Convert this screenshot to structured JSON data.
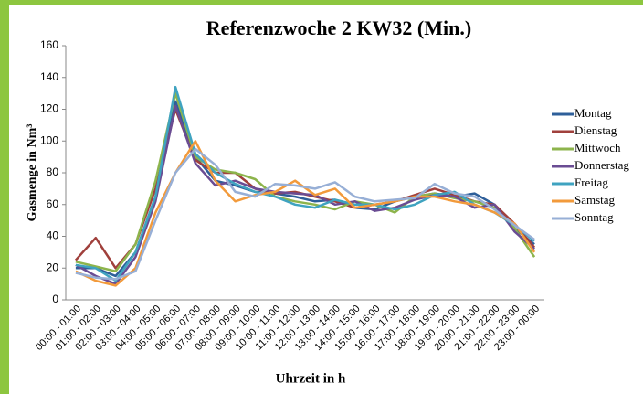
{
  "chart_data": {
    "type": "line",
    "title": "Referenzwoche 2 KW32 (Min.)",
    "y_label": "Gasmenge in Nm³",
    "x_label": "Uhrzeit in h",
    "categories": [
      "00:00 - 01:00",
      "01:00 - 02:00",
      "02:00 - 03:00",
      "03:00 - 04:00",
      "04:00 - 05:00",
      "05:00 - 06:00",
      "06:00 - 07:00",
      "07:00 - 08:00",
      "08:00 - 09:00",
      "09:00 - 10:00",
      "10:00 - 11:00",
      "11:00 - 12:00",
      "12:00 - 13:00",
      "13:00 - 14:00",
      "14:00 - 15:00",
      "15:00 - 16:00",
      "16:00 - 17:00",
      "17:00 - 18:00",
      "18:00 - 19:00",
      "19:00 - 20:00",
      "20:00 - 21:00",
      "21:00 - 22:00",
      "22:00 - 23:00",
      "23:00 - 00:00"
    ],
    "series": [
      {
        "name": "Montag",
        "color": "#2e5f9a",
        "values": [
          20,
          20,
          15,
          30,
          65,
          125,
          90,
          75,
          72,
          68,
          67,
          65,
          62,
          63,
          58,
          57,
          62,
          65,
          67,
          65,
          67,
          60,
          45,
          35
        ]
      },
      {
        "name": "Dienstag",
        "color": "#a0403c",
        "values": [
          25,
          39,
          20,
          35,
          70,
          120,
          88,
          80,
          80,
          70,
          67,
          68,
          65,
          62,
          58,
          60,
          62,
          66,
          70,
          66,
          62,
          60,
          48,
          33
        ]
      },
      {
        "name": "Mittwoch",
        "color": "#8db44c",
        "values": [
          24,
          21,
          18,
          35,
          75,
          130,
          90,
          82,
          80,
          76,
          65,
          62,
          60,
          57,
          62,
          60,
          55,
          65,
          67,
          64,
          62,
          58,
          45,
          27
        ]
      },
      {
        "name": "Donnerstag",
        "color": "#6a4c93",
        "values": [
          22,
          15,
          10,
          27,
          62,
          122,
          86,
          72,
          75,
          70,
          68,
          67,
          66,
          60,
          62,
          56,
          58,
          63,
          66,
          65,
          58,
          60,
          43,
          32
        ]
      },
      {
        "name": "Freitag",
        "color": "#3fa3c0",
        "values": [
          22,
          20,
          12,
          30,
          65,
          134,
          92,
          80,
          73,
          68,
          65,
          60,
          58,
          63,
          60,
          60,
          57,
          60,
          66,
          68,
          60,
          55,
          47,
          37
        ]
      },
      {
        "name": "Samstag",
        "color": "#f29a3b",
        "values": [
          18,
          12,
          9,
          20,
          55,
          80,
          100,
          75,
          62,
          66,
          68,
          75,
          66,
          70,
          58,
          60,
          62,
          65,
          65,
          62,
          60,
          55,
          48,
          30
        ]
      },
      {
        "name": "Sonntag",
        "color": "#97afd6",
        "values": [
          17,
          14,
          13,
          18,
          50,
          80,
          95,
          85,
          68,
          65,
          73,
          72,
          70,
          74,
          65,
          62,
          63,
          64,
          73,
          67,
          65,
          57,
          47,
          38
        ]
      }
    ],
    "ylim": [
      0,
      160
    ],
    "yticks": [
      0,
      20,
      40,
      60,
      80,
      100,
      120,
      140,
      160
    ]
  }
}
